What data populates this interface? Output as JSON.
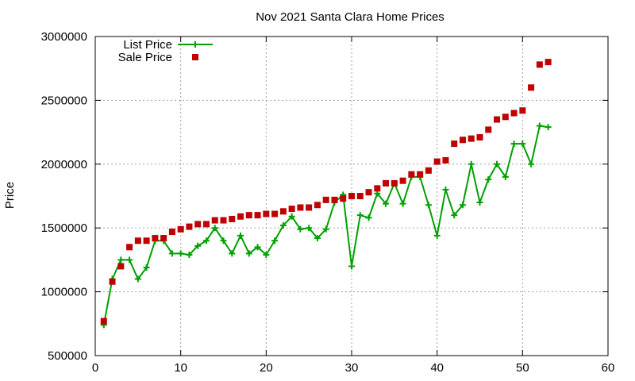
{
  "chart_data": {
    "type": "line",
    "title": "Nov 2021 Santa Clara Home Prices",
    "xlabel": "",
    "ylabel": "Price",
    "xlim": [
      0,
      60
    ],
    "ylim": [
      500000,
      3000000
    ],
    "xticks": [
      0,
      10,
      20,
      30,
      40,
      50,
      60
    ],
    "yticks": [
      500000,
      1000000,
      1500000,
      2000000,
      2500000,
      3000000
    ],
    "xtick_labels": [
      "0",
      "10",
      "20",
      "30",
      "40",
      "50",
      "60"
    ],
    "ytick_labels": [
      "500000",
      "1000000",
      "1500000",
      "2000000",
      "2500000",
      "3000000"
    ],
    "grid": true,
    "legend_position": "top-left",
    "series": [
      {
        "name": "List Price",
        "style": "line-with-plus-markers",
        "color": "#00a000",
        "x": [
          1,
          2,
          3,
          4,
          5,
          6,
          7,
          8,
          9,
          10,
          11,
          12,
          13,
          14,
          15,
          16,
          17,
          18,
          19,
          20,
          21,
          22,
          23,
          24,
          25,
          26,
          27,
          28,
          29,
          30,
          31,
          32,
          33,
          34,
          35,
          36,
          37,
          38,
          39,
          40,
          41,
          42,
          43,
          44,
          45,
          46,
          47,
          48,
          49,
          50,
          51,
          52,
          53
        ],
        "values": [
          740000,
          1100000,
          1250000,
          1250000,
          1100000,
          1190000,
          1400000,
          1400000,
          1300000,
          1300000,
          1290000,
          1360000,
          1400000,
          1500000,
          1400000,
          1300000,
          1440000,
          1300000,
          1350000,
          1290000,
          1400000,
          1520000,
          1590000,
          1490000,
          1500000,
          1420000,
          1490000,
          1700000,
          1760000,
          1200000,
          1600000,
          1580000,
          1770000,
          1690000,
          1850000,
          1690000,
          1900000,
          1900000,
          1680000,
          1440000,
          1800000,
          1600000,
          1680000,
          2000000,
          1700000,
          1880000,
          2000000,
          1900000,
          2160000,
          2160000,
          2000000,
          2300000,
          2290000
        ]
      },
      {
        "name": "Sale Price",
        "style": "square-markers",
        "color": "#c00000",
        "x": [
          1,
          2,
          3,
          4,
          5,
          6,
          7,
          8,
          9,
          10,
          11,
          12,
          13,
          14,
          15,
          16,
          17,
          18,
          19,
          20,
          21,
          22,
          23,
          24,
          25,
          26,
          27,
          28,
          29,
          30,
          31,
          32,
          33,
          34,
          35,
          36,
          37,
          38,
          39,
          40,
          41,
          42,
          43,
          44,
          45,
          46,
          47,
          48,
          49,
          50,
          51,
          52,
          53
        ],
        "values": [
          770000,
          1080000,
          1200000,
          1350000,
          1400000,
          1400000,
          1420000,
          1420000,
          1470000,
          1490000,
          1510000,
          1530000,
          1530000,
          1560000,
          1560000,
          1570000,
          1590000,
          1600000,
          1600000,
          1610000,
          1610000,
          1630000,
          1650000,
          1660000,
          1660000,
          1680000,
          1720000,
          1720000,
          1730000,
          1750000,
          1750000,
          1780000,
          1810000,
          1850000,
          1850000,
          1870000,
          1920000,
          1920000,
          1950000,
          2020000,
          2030000,
          2160000,
          2190000,
          2200000,
          2210000,
          2270000,
          2350000,
          2370000,
          2400000,
          2420000,
          2600000,
          2780000,
          2800000
        ]
      }
    ]
  }
}
